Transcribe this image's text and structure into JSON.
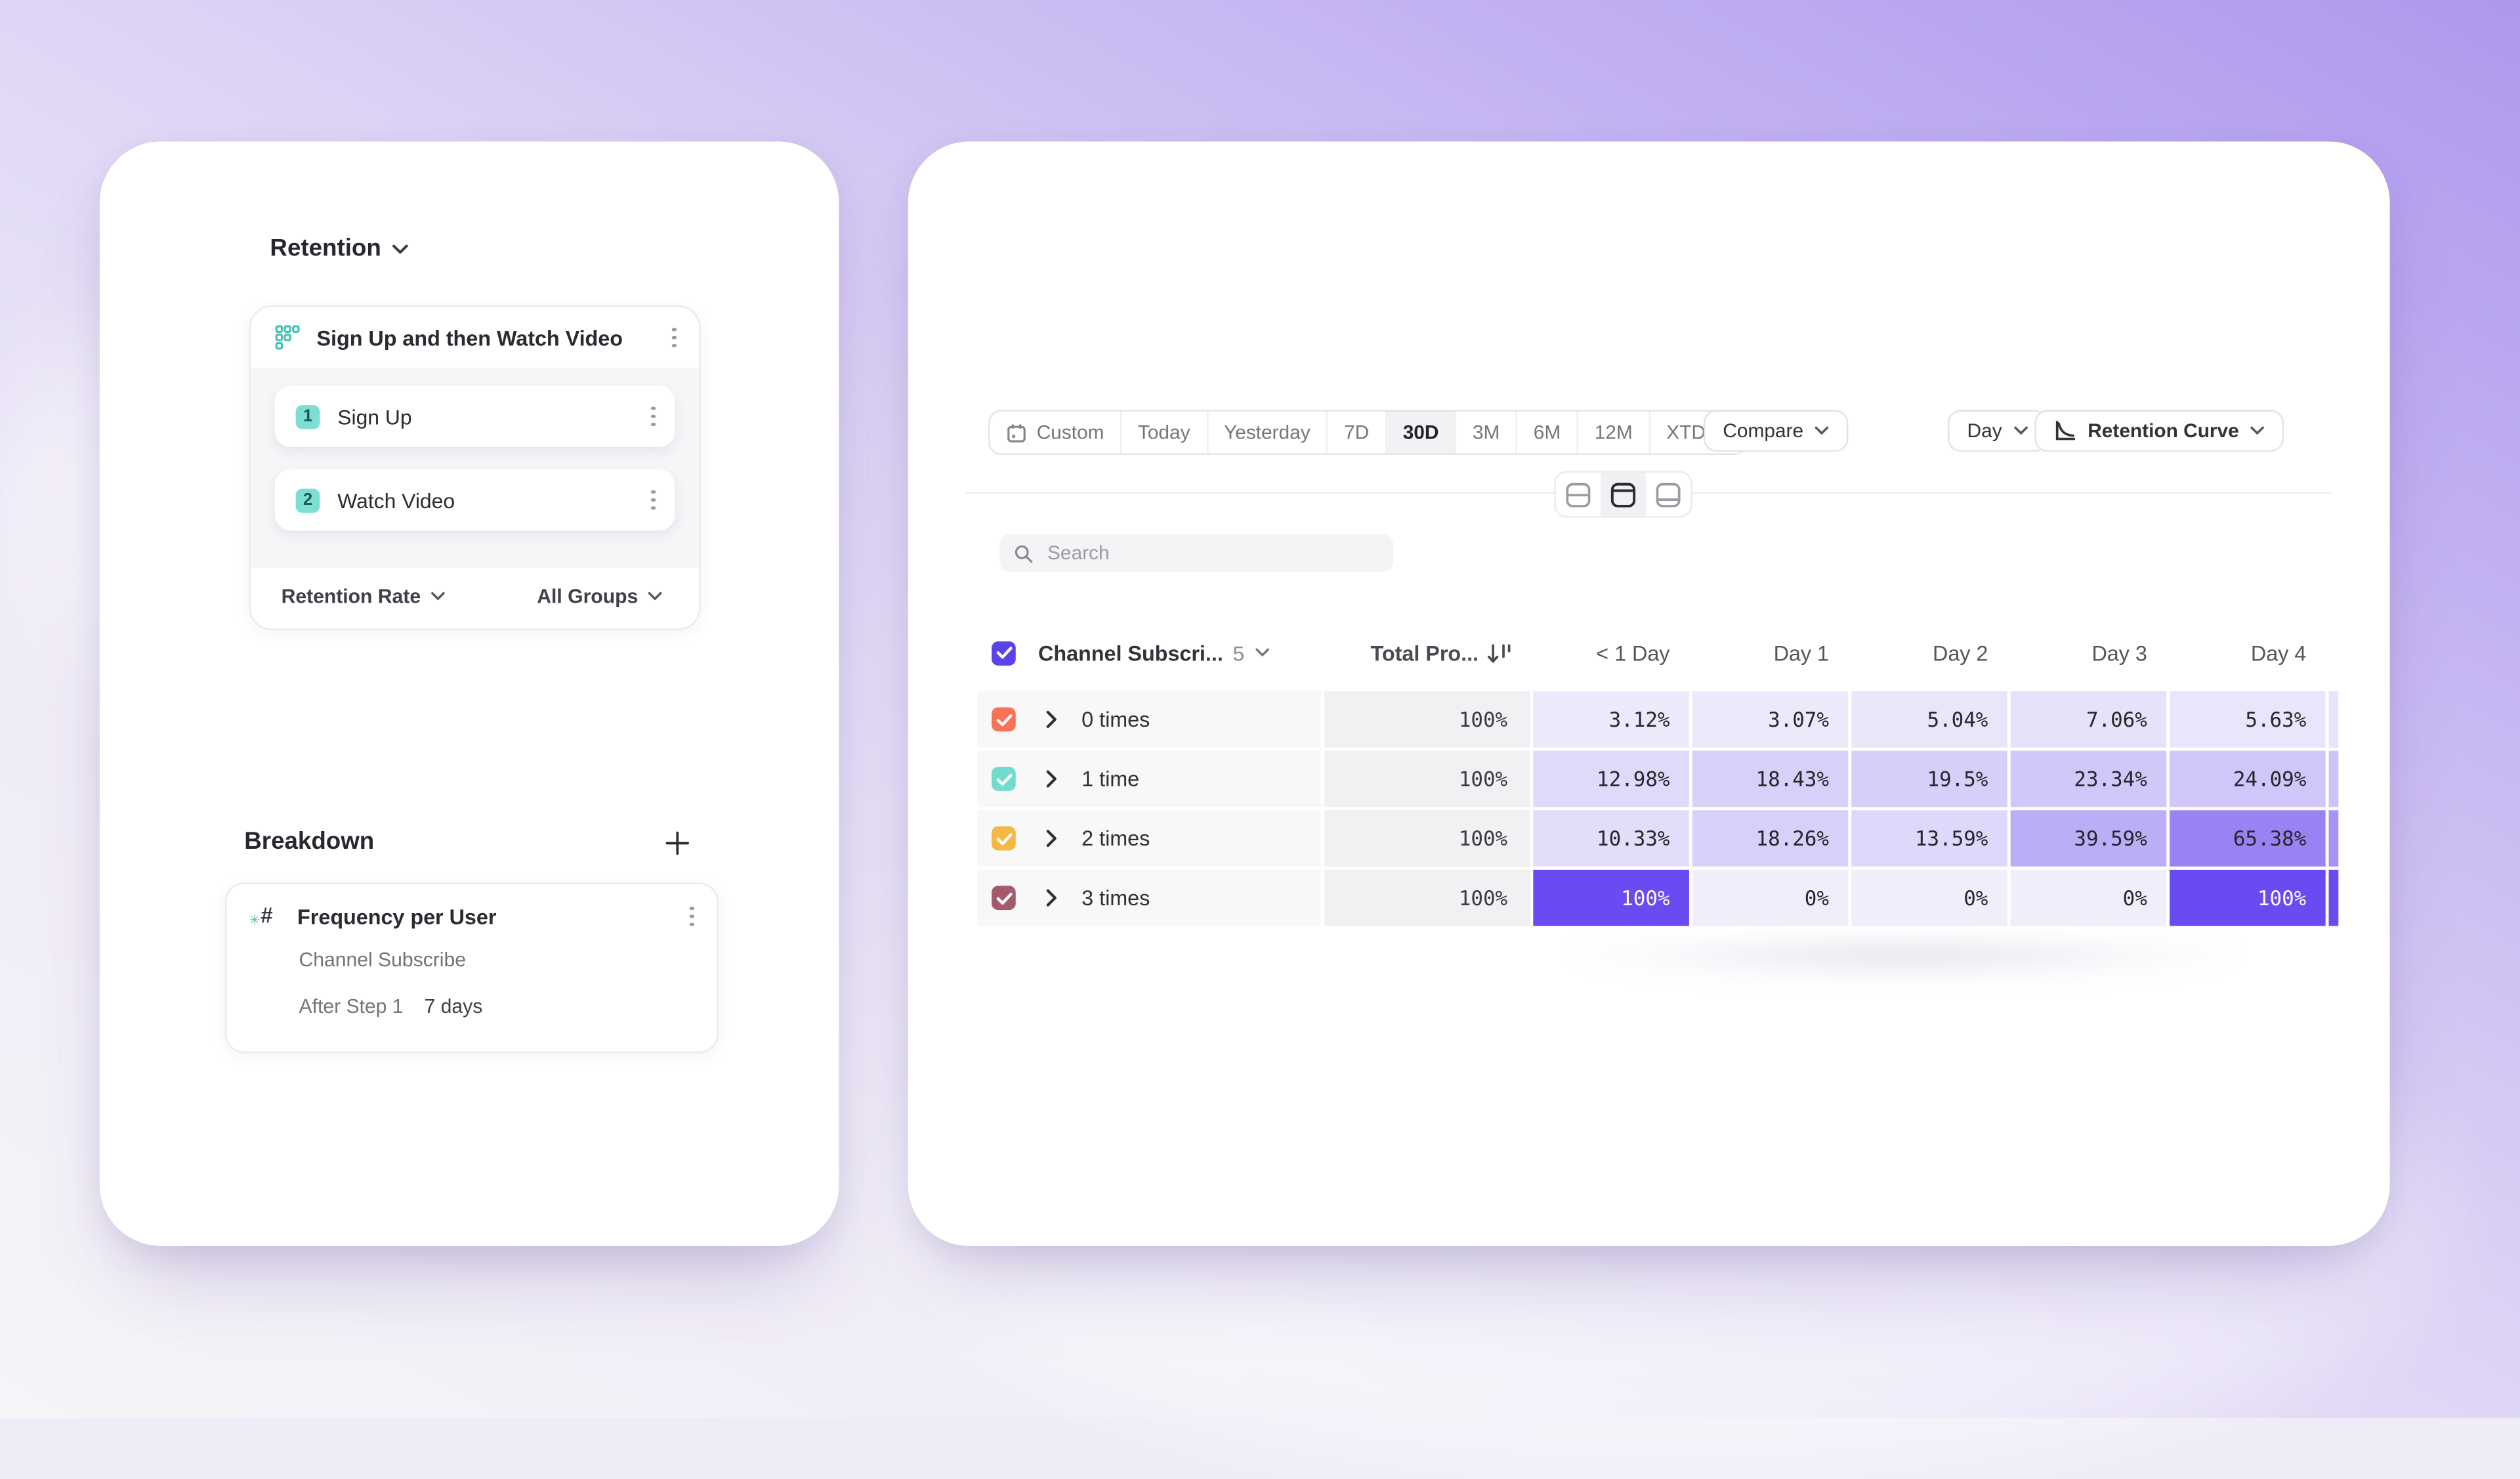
{
  "colors": {
    "accent": "#5A43E8",
    "heat_low": "#F1EEFB",
    "heat_high": "#6A4AF1",
    "teal": "#45C0B1",
    "gradient_top_right": "#AE98EE",
    "gradient_bottom_left": "#F6F4F8"
  },
  "left_panel": {
    "title": "Retention",
    "funnel": {
      "title": "Sign Up and then Watch Video",
      "steps": [
        {
          "number": "1",
          "label": "Sign Up"
        },
        {
          "number": "2",
          "label": "Watch Video"
        }
      ],
      "footer": {
        "metric": "Retention Rate",
        "groups": "All Groups"
      }
    },
    "breakdown": {
      "title": "Breakdown",
      "item": {
        "title": "Frequency per User",
        "event": "Channel Subscribe",
        "after_step": "After Step 1",
        "window": "7 days"
      }
    }
  },
  "right_panel": {
    "date_ranges": [
      "Custom",
      "Today",
      "Yesterday",
      "7D",
      "30D",
      "3M",
      "6M",
      "12M",
      "XTD"
    ],
    "selected_range": "30D",
    "compare_label": "Compare",
    "granularity_label": "Day",
    "chart_type_label": "Retention Curve",
    "search_placeholder": "Search",
    "table_header": {
      "name": "Channel Subscri...",
      "count": "5"
    }
  },
  "chart_data": {
    "type": "heatmap",
    "title": "Retention cohort table by Channel Subscribe frequency per user",
    "legend_position": "none",
    "columns": [
      "Total Pro...",
      "< 1 Day",
      "Day 1",
      "Day 2",
      "Day 3",
      "Day 4"
    ],
    "rows": [
      {
        "label": "0 times",
        "color": "#F97157",
        "total": 100,
        "values": [
          3.12,
          3.07,
          5.04,
          7.06,
          5.63
        ]
      },
      {
        "label": "1 time",
        "color": "#71DCCE",
        "total": 100,
        "values": [
          12.98,
          18.43,
          19.5,
          23.34,
          24.09
        ]
      },
      {
        "label": "2 times",
        "color": "#F5B844",
        "total": 100,
        "values": [
          10.33,
          18.26,
          13.59,
          39.59,
          65.38
        ]
      },
      {
        "label": "3 times",
        "color": "#A55A6B",
        "total": 100,
        "values": [
          100,
          0,
          0,
          0,
          100
        ]
      }
    ],
    "clipped_next_column_shades": [
      6,
      26,
      55,
      100
    ]
  }
}
